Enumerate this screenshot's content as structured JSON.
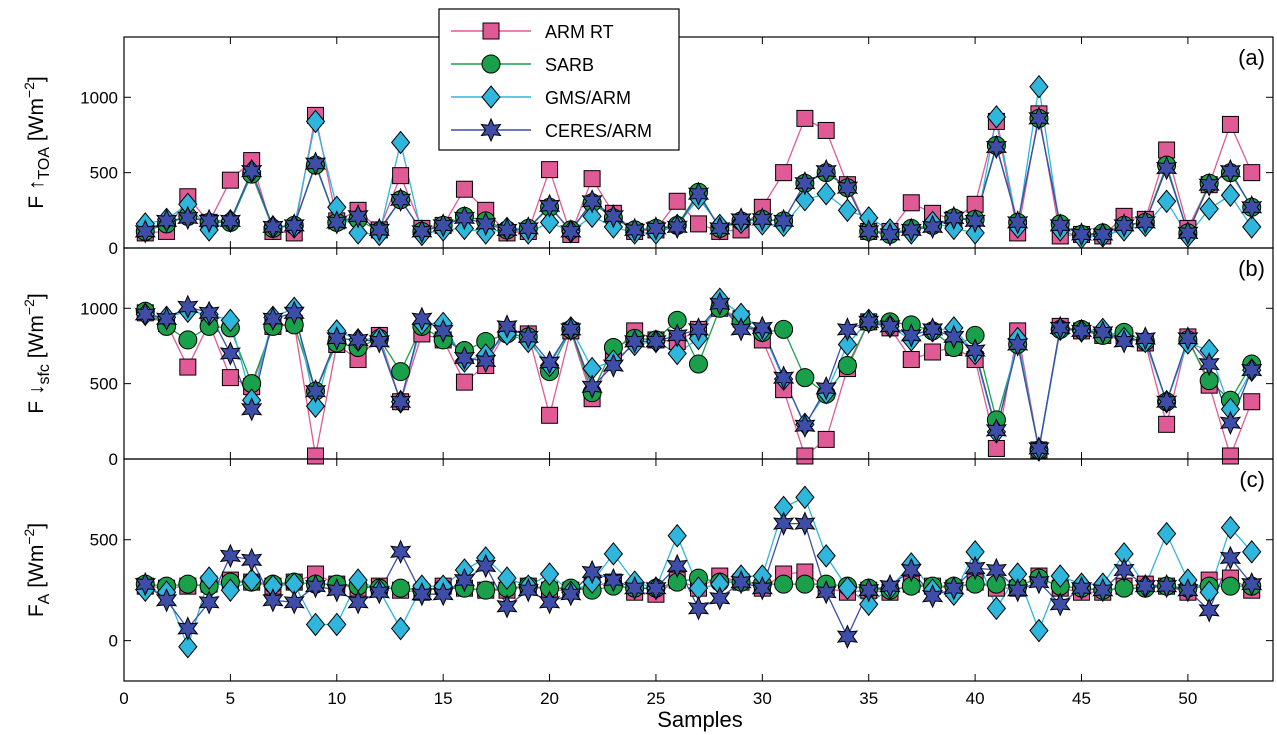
{
  "figure": {
    "xlabel": "Samples",
    "xticks": [
      "0",
      "5",
      "10",
      "15",
      "20",
      "25",
      "30",
      "35",
      "40",
      "45",
      "50"
    ]
  },
  "legend": {
    "placement": "top-left inside panel (a)",
    "entries": [
      "ARM RT",
      "SARB",
      "GMS/ARM",
      "CERES/ARM"
    ]
  },
  "styles": {
    "ARM RT": {
      "marker": "square",
      "fill": "#e05a95",
      "line": "#e05a95"
    },
    "SARB": {
      "marker": "circle",
      "fill": "#1aa04a",
      "line": "#1aa04a"
    },
    "GMS/ARM": {
      "marker": "diamond",
      "fill": "#2fb6dc",
      "line": "#2fb6dc"
    },
    "CERES/ARM": {
      "marker": "star",
      "fill": "#3d4da8",
      "line": "#3d4da8"
    }
  },
  "chart_data": [
    {
      "type": "line",
      "panel_label": "(a)",
      "ylabel_main": "F",
      "ylabel_arrow": "↑",
      "ylabel_sub": "TOA",
      "ylabel_units": "[Wm",
      "ylabel_exp": "−2",
      "ylabel_close": "]",
      "ylim": [
        0,
        1400
      ],
      "yticks": [
        0,
        500,
        1000
      ],
      "xlim": [
        0,
        54
      ],
      "x": [
        1,
        2,
        3,
        4,
        5,
        6,
        7,
        8,
        9,
        10,
        11,
        12,
        13,
        14,
        15,
        16,
        17,
        18,
        19,
        20,
        21,
        22,
        23,
        24,
        25,
        26,
        27,
        28,
        29,
        30,
        31,
        32,
        33,
        34,
        35,
        36,
        37,
        38,
        39,
        40,
        41,
        42,
        43,
        44,
        45,
        46,
        47,
        48,
        49,
        50,
        51,
        52,
        53
      ],
      "series": [
        {
          "name": "ARM RT",
          "values": [
            100,
            110,
            340,
            170,
            450,
            580,
            110,
            100,
            880,
            180,
            250,
            120,
            480,
            130,
            150,
            390,
            250,
            100,
            110,
            520,
            90,
            460,
            230,
            110,
            120,
            310,
            160,
            110,
            120,
            270,
            500,
            860,
            780,
            420,
            110,
            110,
            300,
            230,
            190,
            290,
            840,
            100,
            890,
            80,
            90,
            80,
            210,
            190,
            650,
            130,
            420,
            820,
            500
          ]
        },
        {
          "name": "SARB",
          "values": [
            110,
            160,
            210,
            170,
            170,
            490,
            130,
            150,
            550,
            170,
            190,
            110,
            320,
            110,
            150,
            210,
            180,
            120,
            130,
            270,
            120,
            300,
            200,
            120,
            130,
            150,
            370,
            130,
            180,
            190,
            180,
            430,
            500,
            400,
            110,
            90,
            130,
            150,
            200,
            190,
            680,
            170,
            860,
            160,
            90,
            100,
            150,
            170,
            550,
            100,
            430,
            500,
            270
          ]
        },
        {
          "name": "GMS/ARM",
          "values": [
            160,
            190,
            290,
            120,
            180,
            510,
            140,
            140,
            840,
            270,
            100,
            90,
            700,
            90,
            120,
            130,
            100,
            130,
            100,
            170,
            110,
            210,
            140,
            100,
            100,
            150,
            330,
            150,
            170,
            160,
            150,
            320,
            360,
            250,
            200,
            120,
            100,
            170,
            130,
            100,
            870,
            140,
            1070,
            120,
            70,
            80,
            120,
            150,
            310,
            80,
            260,
            350,
            140
          ]
        },
        {
          "name": "CERES/ARM",
          "values": [
            110,
            180,
            200,
            180,
            180,
            510,
            140,
            150,
            560,
            170,
            210,
            120,
            320,
            110,
            150,
            200,
            160,
            120,
            130,
            280,
            110,
            310,
            210,
            120,
            130,
            140,
            360,
            130,
            190,
            190,
            180,
            430,
            510,
            400,
            110,
            90,
            120,
            140,
            200,
            180,
            670,
            170,
            860,
            150,
            90,
            90,
            150,
            170,
            530,
            100,
            420,
            510,
            270
          ]
        }
      ]
    },
    {
      "type": "line",
      "panel_label": "(b)",
      "ylabel_main": "F",
      "ylabel_arrow": "↓",
      "ylabel_sub": "sfc",
      "ylabel_units": "[Wm",
      "ylabel_exp": "−2",
      "ylabel_close": "]",
      "ylim": [
        0,
        1400
      ],
      "yticks": [
        0,
        500,
        1000
      ],
      "xlim": [
        0,
        54
      ],
      "x": [
        1,
        2,
        3,
        4,
        5,
        6,
        7,
        8,
        9,
        10,
        11,
        12,
        13,
        14,
        15,
        16,
        17,
        18,
        19,
        20,
        21,
        22,
        23,
        24,
        25,
        26,
        27,
        28,
        29,
        30,
        31,
        32,
        33,
        34,
        35,
        36,
        37,
        38,
        39,
        40,
        41,
        42,
        43,
        44,
        45,
        46,
        47,
        48,
        49,
        50,
        51,
        52,
        53
      ],
      "series": [
        {
          "name": "ARM RT",
          "values": [
            970,
            900,
            610,
            900,
            540,
            480,
            880,
            900,
            20,
            760,
            660,
            820,
            380,
            830,
            790,
            510,
            620,
            850,
            830,
            290,
            850,
            400,
            700,
            850,
            790,
            780,
            860,
            1000,
            930,
            790,
            460,
            20,
            130,
            600,
            910,
            870,
            660,
            710,
            740,
            660,
            70,
            850,
            60,
            880,
            850,
            820,
            820,
            770,
            230,
            810,
            490,
            20,
            380
          ]
        },
        {
          "name": "SARB",
          "values": [
            980,
            880,
            790,
            880,
            870,
            500,
            880,
            890,
            450,
            770,
            740,
            800,
            580,
            880,
            790,
            720,
            780,
            830,
            810,
            580,
            860,
            440,
            740,
            800,
            790,
            920,
            630,
            1000,
            910,
            840,
            860,
            540,
            430,
            620,
            910,
            910,
            890,
            850,
            740,
            820,
            260,
            760,
            60,
            860,
            860,
            820,
            840,
            780,
            380,
            790,
            520,
            390,
            630
          ]
        },
        {
          "name": "GMS/ARM",
          "values": [
            960,
            940,
            980,
            960,
            920,
            390,
            940,
            1000,
            350,
            850,
            790,
            800,
            380,
            900,
            900,
            650,
            690,
            830,
            780,
            620,
            870,
            600,
            650,
            760,
            780,
            700,
            800,
            1060,
            960,
            850,
            530,
            230,
            440,
            760,
            920,
            880,
            790,
            850,
            870,
            700,
            180,
            800,
            60,
            860,
            850,
            860,
            800,
            780,
            380,
            770,
            720,
            330,
            590
          ]
        },
        {
          "name": "CERES/ARM",
          "values": [
            960,
            930,
            1010,
            970,
            700,
            330,
            930,
            970,
            450,
            800,
            790,
            780,
            380,
            930,
            850,
            670,
            650,
            880,
            810,
            640,
            860,
            480,
            620,
            780,
            780,
            820,
            860,
            1030,
            860,
            870,
            540,
            220,
            470,
            860,
            910,
            880,
            820,
            860,
            810,
            720,
            190,
            760,
            70,
            870,
            850,
            840,
            780,
            800,
            380,
            800,
            630,
            240,
            590
          ]
        }
      ]
    },
    {
      "type": "line",
      "panel_label": "(c)",
      "ylabel_main": "F",
      "ylabel_sub": "A",
      "ylabel_units": "[Wm",
      "ylabel_exp": "−2",
      "ylabel_close": "]",
      "ylim": [
        -200,
        900
      ],
      "yticks": [
        0,
        500
      ],
      "xlim": [
        0,
        54
      ],
      "x": [
        1,
        2,
        3,
        4,
        5,
        6,
        7,
        8,
        9,
        10,
        11,
        12,
        13,
        14,
        15,
        16,
        17,
        18,
        19,
        20,
        21,
        22,
        23,
        24,
        25,
        26,
        27,
        28,
        29,
        30,
        31,
        32,
        33,
        34,
        35,
        36,
        37,
        38,
        39,
        40,
        41,
        42,
        43,
        44,
        45,
        46,
        47,
        48,
        49,
        50,
        51,
        52,
        53
      ],
      "series": [
        {
          "name": "ARM RT",
          "values": [
            270,
            260,
            270,
            280,
            300,
            290,
            270,
            290,
            330,
            280,
            260,
            270,
            250,
            240,
            270,
            260,
            250,
            250,
            270,
            250,
            250,
            270,
            290,
            240,
            230,
            300,
            260,
            320,
            290,
            260,
            330,
            340,
            260,
            240,
            250,
            240,
            280,
            270,
            260,
            290,
            260,
            260,
            320,
            260,
            240,
            240,
            270,
            280,
            270,
            240,
            300,
            310,
            250
          ]
        },
        {
          "name": "SARB",
          "values": [
            280,
            270,
            280,
            270,
            290,
            290,
            280,
            290,
            280,
            280,
            270,
            260,
            260,
            250,
            260,
            260,
            250,
            260,
            270,
            260,
            260,
            250,
            270,
            260,
            260,
            290,
            310,
            290,
            290,
            280,
            280,
            280,
            280,
            270,
            260,
            250,
            270,
            270,
            270,
            280,
            280,
            270,
            310,
            270,
            260,
            250,
            260,
            260,
            270,
            260,
            270,
            270,
            270
          ]
        },
        {
          "name": "GMS/ARM",
          "values": [
            250,
            240,
            -30,
            310,
            250,
            300,
            270,
            280,
            80,
            80,
            300,
            250,
            60,
            270,
            270,
            350,
            410,
            310,
            270,
            330,
            240,
            290,
            430,
            290,
            260,
            520,
            260,
            280,
            320,
            320,
            660,
            710,
            420,
            260,
            180,
            260,
            380,
            250,
            230,
            440,
            160,
            330,
            50,
            320,
            280,
            280,
            430,
            270,
            530,
            300,
            240,
            560,
            440
          ]
        },
        {
          "name": "CERES/ARM",
          "values": [
            280,
            200,
            60,
            190,
            420,
            400,
            200,
            190,
            270,
            250,
            190,
            240,
            440,
            230,
            230,
            300,
            370,
            170,
            250,
            190,
            230,
            340,
            300,
            260,
            260,
            370,
            160,
            210,
            290,
            260,
            580,
            580,
            240,
            20,
            250,
            270,
            350,
            220,
            260,
            360,
            350,
            250,
            290,
            180,
            260,
            250,
            350,
            270,
            270,
            250,
            150,
            410,
            280
          ]
        }
      ]
    }
  ]
}
